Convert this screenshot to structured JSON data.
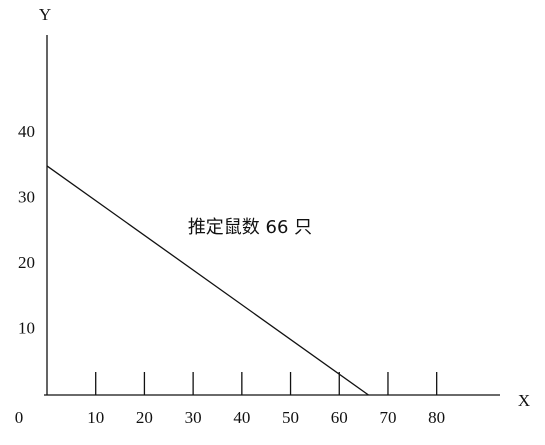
{
  "chart_data": {
    "type": "line",
    "annotation": "推定鼠数 66 只",
    "x_label": "X",
    "y_label": "Y",
    "x": [
      0,
      66
    ],
    "values": [
      35,
      0
    ],
    "color": "#111111",
    "xlim": [
      0,
      93
    ],
    "ylim": [
      0,
      55
    ],
    "xticks": [
      0,
      10,
      20,
      30,
      40,
      50,
      60,
      70,
      80
    ],
    "yticks": [
      10,
      20,
      30,
      40
    ]
  }
}
